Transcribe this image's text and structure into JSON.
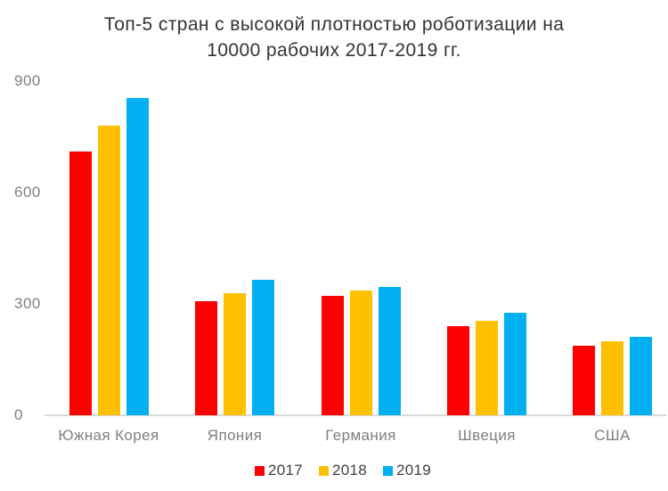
{
  "chart_data": {
    "type": "bar",
    "title": "Топ-5 стран с высокой плотностью роботизации на 10000 рабочих 2017-2019 гг.",
    "title_lines": [
      "Топ-5 стран с высокой плотностью роботизации на",
      "10000 рабочих 2017-2019 гг."
    ],
    "categories": [
      "Южная Корея",
      "Япония",
      "Германия",
      "Швеция",
      "США"
    ],
    "series": [
      {
        "name": "2017",
        "color": "#FF0000",
        "values": [
          710,
          308,
          322,
          240,
          188
        ]
      },
      {
        "name": "2018",
        "color": "#FFC000",
        "values": [
          780,
          330,
          335,
          254,
          200
        ]
      },
      {
        "name": "2019",
        "color": "#00B0F0",
        "values": [
          855,
          364,
          346,
          275,
          212
        ]
      }
    ],
    "xlabel": "",
    "ylabel": "",
    "ylim": [
      0,
      900
    ],
    "y_ticks": [
      0,
      300,
      600,
      900
    ],
    "grid": false,
    "legend_position": "bottom"
  },
  "colors": {
    "background": "#FFFFFF",
    "axis_line": "#D9D9D9",
    "tick_label": "#808080",
    "category_label": "#7F7F7F",
    "title_text": "#333333",
    "legend_text": "#404040"
  }
}
